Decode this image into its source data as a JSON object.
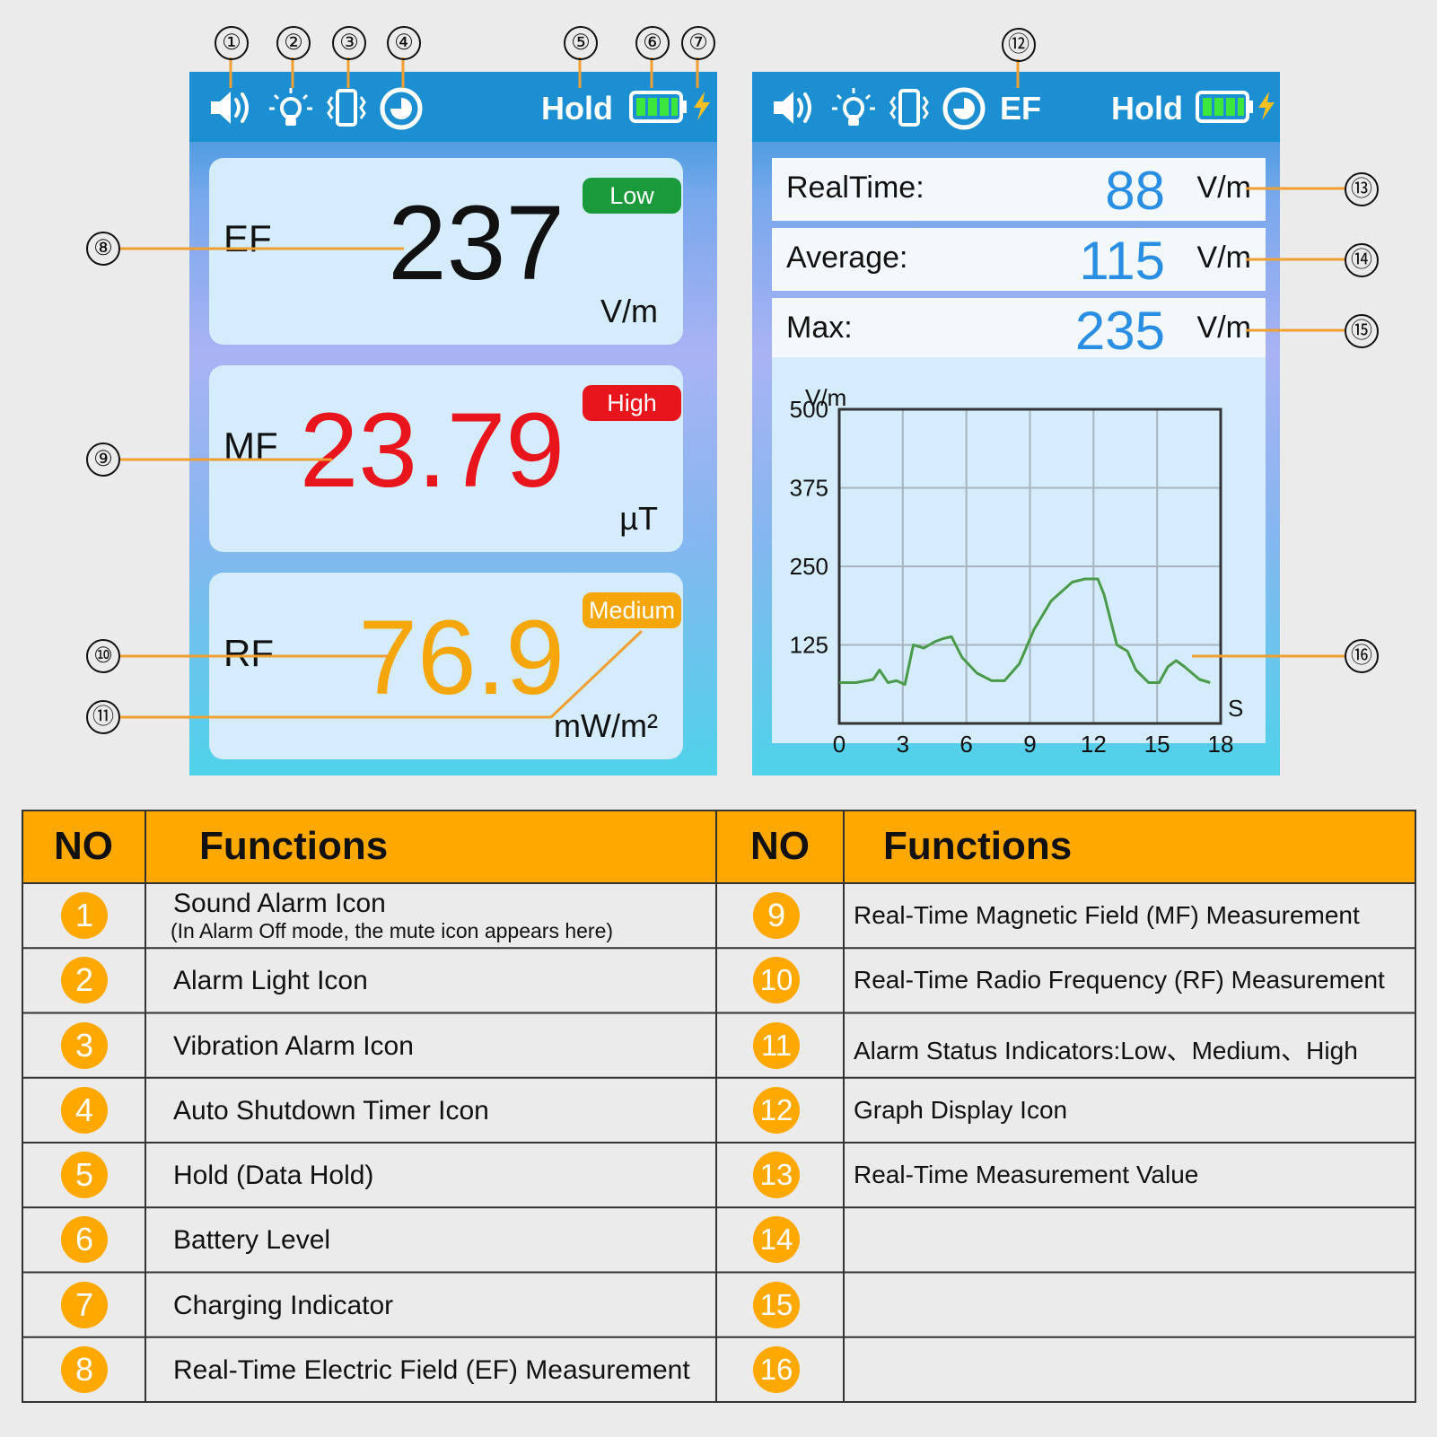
{
  "left_screen": {
    "status": {
      "hold": "Hold"
    },
    "panels": [
      {
        "label": "EF",
        "value": "237",
        "unit": "V/m",
        "badge": "Low",
        "badge_color": "#1a9a3a",
        "value_color": "#111111"
      },
      {
        "label": "MF",
        "value": "23.79",
        "unit": "µT",
        "badge": "High",
        "badge_color": "#e8151c",
        "value_color": "#e8151c"
      },
      {
        "label": "RF",
        "value": "76.9",
        "unit": "mW/m²",
        "badge": "Medium",
        "badge_color": "#f4a60a",
        "value_color": "#f4a60a"
      }
    ]
  },
  "right_screen": {
    "status": {
      "mode": "EF",
      "hold": "Hold"
    },
    "rows": [
      {
        "label": "RealTime:",
        "value": "88",
        "unit": "V/m"
      },
      {
        "label": "Average:",
        "value": "115",
        "unit": "V/m"
      },
      {
        "label": "Max:",
        "value": "235",
        "unit": "V/m"
      }
    ]
  },
  "chart_data": {
    "type": "line",
    "ylabel": "V/m",
    "xlabel": "S",
    "y_ticks": [
      "500",
      "375",
      "250",
      "125"
    ],
    "x_ticks": [
      "0",
      "3",
      "6",
      "9",
      "12",
      "15",
      "18"
    ],
    "xlim": [
      0,
      18
    ],
    "ylim": [
      0,
      500
    ],
    "series": [
      {
        "color": "#4a9a4a",
        "x": [
          0,
          0.8,
          1.6,
          1.9,
          2.3,
          2.7,
          3.1,
          3.5,
          4.0,
          4.5,
          4.9,
          5.3,
          5.8,
          6.5,
          7.2,
          7.8,
          8.5,
          9.2,
          10.0,
          11.0,
          11.6,
          12.2,
          12.5,
          12.8,
          13.1,
          13.6,
          14.0,
          14.6,
          15.1,
          15.5,
          15.9,
          16.3,
          17.0,
          17.5
        ],
        "y": [
          65,
          65,
          70,
          85,
          65,
          68,
          62,
          125,
          120,
          130,
          135,
          138,
          105,
          80,
          68,
          68,
          95,
          150,
          195,
          225,
          230,
          230,
          205,
          165,
          125,
          115,
          85,
          65,
          65,
          90,
          100,
          90,
          70,
          65
        ]
      }
    ]
  },
  "callouts": [
    "①",
    "②",
    "③",
    "④",
    "⑤",
    "⑥",
    "⑦",
    "⑧",
    "⑨",
    "⑩",
    "⑪",
    "⑫",
    "⑬",
    "⑭",
    "⑮",
    "⑯"
  ],
  "table": {
    "headers": {
      "no": "NO",
      "functions": "Functions"
    },
    "left": [
      {
        "no": "1",
        "text": "Sound Alarm Icon",
        "sub": "(In Alarm Off mode, the mute icon appears here)"
      },
      {
        "no": "2",
        "text": "Alarm Light Icon"
      },
      {
        "no": "3",
        "text": "Vibration Alarm Icon"
      },
      {
        "no": "4",
        "text": "Auto Shutdown Timer Icon"
      },
      {
        "no": "5",
        "text": "Hold (Data Hold)"
      },
      {
        "no": "6",
        "text": "Battery Level"
      },
      {
        "no": "7",
        "text": "Charging Indicator"
      },
      {
        "no": "8",
        "text": "Real-Time Electric Field (EF) Measurement"
      }
    ],
    "right": [
      {
        "no": "9",
        "text": "Real-Time Magnetic Field (MF) Measurement"
      },
      {
        "no": "10",
        "text": "Real-Time Radio Frequency (RF) Measurement"
      },
      {
        "no": "11",
        "text": "Alarm Status Indicators:Low、Medium、High"
      },
      {
        "no": "12",
        "text": "Graph Display Icon"
      },
      {
        "no": "13",
        "text": "Real-Time Measurement Value"
      },
      {
        "no": "14",
        "text": ""
      },
      {
        "no": "15",
        "text": ""
      },
      {
        "no": "16",
        "text": ""
      }
    ]
  },
  "colors": {
    "accent": "#ffa800",
    "header_blue": "#1b8fd1",
    "callout_line": "#f0a030"
  }
}
